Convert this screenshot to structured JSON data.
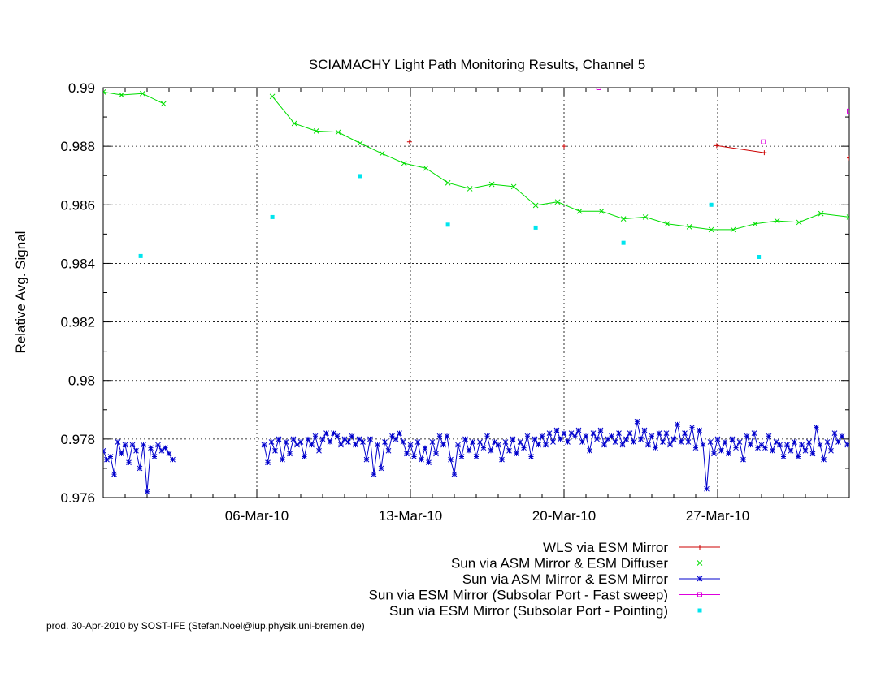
{
  "chart_data": {
    "type": "line",
    "title": "SCIAMACHY Light Path Monitoring Results, Channel 5",
    "xlabel": "",
    "ylabel": "Relative Avg. Signal",
    "x_type": "date",
    "xlim": [
      "2010-02-27",
      "2010-04-02"
    ],
    "ylim": [
      0.976,
      0.99
    ],
    "x_ticks": [
      {
        "date": "2010-03-06",
        "label": "06-Mar-10"
      },
      {
        "date": "2010-03-13",
        "label": "13-Mar-10"
      },
      {
        "date": "2010-03-20",
        "label": "20-Mar-10"
      },
      {
        "date": "2010-03-27",
        "label": "27-Mar-10"
      }
    ],
    "y_ticks": [
      0.976,
      0.978,
      0.98,
      0.982,
      0.984,
      0.986,
      0.988,
      0.99
    ],
    "y_tick_labels": [
      "0.976",
      "0.978",
      "0.98",
      "0.982",
      "0.984",
      "0.986",
      "0.988",
      "0.99"
    ],
    "grid": true,
    "legend_position": "below",
    "series": [
      {
        "name": "WLS via ESM Mirror",
        "color": "#cc0000",
        "marker": "plus",
        "line": true,
        "points": [
          [
            "2010-03-12T23:00",
            0.98815
          ],
          [
            "2010-03-20T00:00",
            0.988
          ],
          [
            "2010-03-26T23:00",
            0.98802
          ],
          [
            "2010-03-29T03:00",
            0.98778
          ],
          [
            "2010-04-02T00:00",
            0.9876
          ]
        ]
      },
      {
        "name": "Sun via ASM Mirror & ESM Diffuser",
        "color": "#00dd00",
        "marker": "cross",
        "line": true,
        "points": [
          [
            "2010-02-27T00:00",
            0.98985
          ],
          [
            "2010-02-27T20:00",
            0.98975
          ],
          [
            "2010-02-28T19:00",
            0.9898
          ],
          [
            "2010-03-01T18:00",
            0.98945
          ],
          [
            "2010-03-06T17:00",
            0.9897
          ],
          [
            "2010-03-07T17:00",
            0.98878
          ],
          [
            "2010-03-08T17:00",
            0.98852
          ],
          [
            "2010-03-09T17:00",
            0.98848
          ],
          [
            "2010-03-10T17:00",
            0.9881
          ],
          [
            "2010-03-11T17:00",
            0.98775
          ],
          [
            "2010-03-12T17:00",
            0.98742
          ],
          [
            "2010-03-13T17:00",
            0.98725
          ],
          [
            "2010-03-14T17:00",
            0.98675
          ],
          [
            "2010-03-15T17:00",
            0.98655
          ],
          [
            "2010-03-16T17:00",
            0.9867
          ],
          [
            "2010-03-17T17:00",
            0.98662
          ],
          [
            "2010-03-18T17:00",
            0.98598
          ],
          [
            "2010-03-19T17:00",
            0.9861
          ],
          [
            "2010-03-20T17:00",
            0.98578
          ],
          [
            "2010-03-21T17:00",
            0.98578
          ],
          [
            "2010-03-22T17:00",
            0.98552
          ],
          [
            "2010-03-23T17:00",
            0.98558
          ],
          [
            "2010-03-24T17:00",
            0.98535
          ],
          [
            "2010-03-25T17:00",
            0.98525
          ],
          [
            "2010-03-26T17:00",
            0.98515
          ],
          [
            "2010-03-27T17:00",
            0.98515
          ],
          [
            "2010-03-28T17:00",
            0.98535
          ],
          [
            "2010-03-29T17:00",
            0.98545
          ],
          [
            "2010-03-30T17:00",
            0.9854
          ],
          [
            "2010-03-31T17:00",
            0.9857
          ],
          [
            "2010-04-02T00:00",
            0.98558
          ]
        ]
      },
      {
        "name": "Sun via ASM Mirror & ESM Mirror",
        "color": "#0000cc",
        "marker": "star",
        "line": true,
        "points": [
          [
            "2010-02-27T00:00",
            0.9776
          ],
          [
            "2010-02-27T04:00",
            0.9773
          ],
          [
            "2010-02-27T08:00",
            0.9774
          ],
          [
            "2010-02-27T12:00",
            0.9768
          ],
          [
            "2010-02-27T16:00",
            0.9779
          ],
          [
            "2010-02-27T20:00",
            0.9775
          ],
          [
            "2010-02-28T00:00",
            0.9778
          ],
          [
            "2010-02-28T04:00",
            0.9772
          ],
          [
            "2010-02-28T08:00",
            0.9778
          ],
          [
            "2010-02-28T12:00",
            0.9776
          ],
          [
            "2010-02-28T16:00",
            0.977
          ],
          [
            "2010-02-28T20:00",
            0.9778
          ],
          [
            "2010-03-01T00:00",
            0.9762
          ],
          [
            "2010-03-01T04:00",
            0.9777
          ],
          [
            "2010-03-01T08:00",
            0.9774
          ],
          [
            "2010-03-01T12:00",
            0.9778
          ],
          [
            "2010-03-01T16:00",
            0.9776
          ],
          [
            "2010-03-01T20:00",
            0.9777
          ],
          [
            "2010-03-02T00:00",
            0.9775
          ],
          [
            "2010-03-02T04:00",
            0.9773
          ],
          [
            "2010-03-06T08:00",
            0.9778
          ],
          [
            "2010-03-06T12:00",
            0.9772
          ],
          [
            "2010-03-06T16:00",
            0.9779
          ],
          [
            "2010-03-06T20:00",
            0.9776
          ],
          [
            "2010-03-07T00:00",
            0.978
          ],
          [
            "2010-03-07T04:00",
            0.9773
          ],
          [
            "2010-03-07T08:00",
            0.9779
          ],
          [
            "2010-03-07T12:00",
            0.9775
          ],
          [
            "2010-03-07T16:00",
            0.978
          ],
          [
            "2010-03-07T20:00",
            0.9778
          ],
          [
            "2010-03-08T00:00",
            0.9779
          ],
          [
            "2010-03-08T04:00",
            0.9774
          ],
          [
            "2010-03-08T08:00",
            0.978
          ],
          [
            "2010-03-08T12:00",
            0.9778
          ],
          [
            "2010-03-08T16:00",
            0.9781
          ],
          [
            "2010-03-08T20:00",
            0.9776
          ],
          [
            "2010-03-09T00:00",
            0.978
          ],
          [
            "2010-03-09T04:00",
            0.9782
          ],
          [
            "2010-03-09T08:00",
            0.9779
          ],
          [
            "2010-03-09T12:00",
            0.9782
          ],
          [
            "2010-03-09T16:00",
            0.9781
          ],
          [
            "2010-03-09T20:00",
            0.9778
          ],
          [
            "2010-03-10T00:00",
            0.978
          ],
          [
            "2010-03-10T04:00",
            0.9779
          ],
          [
            "2010-03-10T08:00",
            0.9781
          ],
          [
            "2010-03-10T12:00",
            0.9778
          ],
          [
            "2010-03-10T16:00",
            0.978
          ],
          [
            "2010-03-10T20:00",
            0.9779
          ],
          [
            "2010-03-11T00:00",
            0.9773
          ],
          [
            "2010-03-11T04:00",
            0.978
          ],
          [
            "2010-03-11T08:00",
            0.9768
          ],
          [
            "2010-03-11T12:00",
            0.9778
          ],
          [
            "2010-03-11T16:00",
            0.977
          ],
          [
            "2010-03-11T20:00",
            0.9779
          ],
          [
            "2010-03-12T00:00",
            0.9776
          ],
          [
            "2010-03-12T04:00",
            0.9781
          ],
          [
            "2010-03-12T08:00",
            0.978
          ],
          [
            "2010-03-12T12:00",
            0.9782
          ],
          [
            "2010-03-12T16:00",
            0.9779
          ],
          [
            "2010-03-12T20:00",
            0.9775
          ],
          [
            "2010-03-13T00:00",
            0.9778
          ],
          [
            "2010-03-13T04:00",
            0.9774
          ],
          [
            "2010-03-13T08:00",
            0.9779
          ],
          [
            "2010-03-13T12:00",
            0.9773
          ],
          [
            "2010-03-13T16:00",
            0.9777
          ],
          [
            "2010-03-13T20:00",
            0.9772
          ],
          [
            "2010-03-14T00:00",
            0.9779
          ],
          [
            "2010-03-14T04:00",
            0.9775
          ],
          [
            "2010-03-14T08:00",
            0.9781
          ],
          [
            "2010-03-14T12:00",
            0.9778
          ],
          [
            "2010-03-14T16:00",
            0.9781
          ],
          [
            "2010-03-14T20:00",
            0.9773
          ],
          [
            "2010-03-15T00:00",
            0.9768
          ],
          [
            "2010-03-15T04:00",
            0.9778
          ],
          [
            "2010-03-15T08:00",
            0.9774
          ],
          [
            "2010-03-15T12:00",
            0.978
          ],
          [
            "2010-03-15T16:00",
            0.9776
          ],
          [
            "2010-03-15T20:00",
            0.9779
          ],
          [
            "2010-03-16T00:00",
            0.9774
          ],
          [
            "2010-03-16T04:00",
            0.9779
          ],
          [
            "2010-03-16T08:00",
            0.9777
          ],
          [
            "2010-03-16T12:00",
            0.9781
          ],
          [
            "2010-03-16T16:00",
            0.9776
          ],
          [
            "2010-03-16T20:00",
            0.9779
          ],
          [
            "2010-03-17T00:00",
            0.9778
          ],
          [
            "2010-03-17T04:00",
            0.9773
          ],
          [
            "2010-03-17T08:00",
            0.9779
          ],
          [
            "2010-03-17T12:00",
            0.9776
          ],
          [
            "2010-03-17T16:00",
            0.978
          ],
          [
            "2010-03-17T20:00",
            0.9775
          ],
          [
            "2010-03-18T00:00",
            0.9779
          ],
          [
            "2010-03-18T04:00",
            0.9777
          ],
          [
            "2010-03-18T08:00",
            0.9781
          ],
          [
            "2010-03-18T12:00",
            0.9774
          ],
          [
            "2010-03-18T16:00",
            0.978
          ],
          [
            "2010-03-18T20:00",
            0.9778
          ],
          [
            "2010-03-19T00:00",
            0.9781
          ],
          [
            "2010-03-19T04:00",
            0.9778
          ],
          [
            "2010-03-19T08:00",
            0.9782
          ],
          [
            "2010-03-19T12:00",
            0.9779
          ],
          [
            "2010-03-19T16:00",
            0.9783
          ],
          [
            "2010-03-19T20:00",
            0.978
          ],
          [
            "2010-03-20T00:00",
            0.9782
          ],
          [
            "2010-03-20T04:00",
            0.9779
          ],
          [
            "2010-03-20T08:00",
            0.9782
          ],
          [
            "2010-03-20T12:00",
            0.9781
          ],
          [
            "2010-03-20T16:00",
            0.9783
          ],
          [
            "2010-03-20T20:00",
            0.9779
          ],
          [
            "2010-03-21T00:00",
            0.9781
          ],
          [
            "2010-03-21T04:00",
            0.9776
          ],
          [
            "2010-03-21T08:00",
            0.9782
          ],
          [
            "2010-03-21T12:00",
            0.978
          ],
          [
            "2010-03-21T16:00",
            0.9783
          ],
          [
            "2010-03-21T20:00",
            0.9778
          ],
          [
            "2010-03-22T00:00",
            0.978
          ],
          [
            "2010-03-22T04:00",
            0.9781
          ],
          [
            "2010-03-22T08:00",
            0.9779
          ],
          [
            "2010-03-22T12:00",
            0.9782
          ],
          [
            "2010-03-22T16:00",
            0.9778
          ],
          [
            "2010-03-22T20:00",
            0.978
          ],
          [
            "2010-03-23T00:00",
            0.9782
          ],
          [
            "2010-03-23T04:00",
            0.9779
          ],
          [
            "2010-03-23T08:00",
            0.9786
          ],
          [
            "2010-03-23T12:00",
            0.978
          ],
          [
            "2010-03-23T16:00",
            0.9783
          ],
          [
            "2010-03-23T20:00",
            0.9778
          ],
          [
            "2010-03-24T00:00",
            0.9781
          ],
          [
            "2010-03-24T04:00",
            0.9777
          ],
          [
            "2010-03-24T08:00",
            0.9782
          ],
          [
            "2010-03-24T12:00",
            0.9779
          ],
          [
            "2010-03-24T16:00",
            0.9782
          ],
          [
            "2010-03-24T20:00",
            0.9778
          ],
          [
            "2010-03-25T00:00",
            0.978
          ],
          [
            "2010-03-25T04:00",
            0.9785
          ],
          [
            "2010-03-25T08:00",
            0.9779
          ],
          [
            "2010-03-25T12:00",
            0.9782
          ],
          [
            "2010-03-25T16:00",
            0.9779
          ],
          [
            "2010-03-25T20:00",
            0.9784
          ],
          [
            "2010-03-26T00:00",
            0.9777
          ],
          [
            "2010-03-26T04:00",
            0.9783
          ],
          [
            "2010-03-26T08:00",
            0.9778
          ],
          [
            "2010-03-26T12:00",
            0.9763
          ],
          [
            "2010-03-26T16:00",
            0.9779
          ],
          [
            "2010-03-26T20:00",
            0.9775
          ],
          [
            "2010-03-27T00:00",
            0.978
          ],
          [
            "2010-03-27T04:00",
            0.9776
          ],
          [
            "2010-03-27T08:00",
            0.9779
          ],
          [
            "2010-03-27T12:00",
            0.9775
          ],
          [
            "2010-03-27T16:00",
            0.978
          ],
          [
            "2010-03-27T20:00",
            0.9777
          ],
          [
            "2010-03-28T00:00",
            0.9779
          ],
          [
            "2010-03-28T04:00",
            0.9773
          ],
          [
            "2010-03-28T08:00",
            0.9781
          ],
          [
            "2010-03-28T12:00",
            0.9778
          ],
          [
            "2010-03-28T16:00",
            0.9782
          ],
          [
            "2010-03-28T20:00",
            0.9777
          ],
          [
            "2010-03-29T00:00",
            0.9778
          ],
          [
            "2010-03-29T04:00",
            0.9777
          ],
          [
            "2010-03-29T08:00",
            0.9781
          ],
          [
            "2010-03-29T12:00",
            0.9776
          ],
          [
            "2010-03-29T16:00",
            0.9779
          ],
          [
            "2010-03-29T20:00",
            0.9778
          ],
          [
            "2010-03-30T00:00",
            0.9774
          ],
          [
            "2010-03-30T04:00",
            0.9778
          ],
          [
            "2010-03-30T08:00",
            0.9776
          ],
          [
            "2010-03-30T12:00",
            0.9779
          ],
          [
            "2010-03-30T16:00",
            0.9774
          ],
          [
            "2010-03-30T20:00",
            0.9778
          ],
          [
            "2010-03-31T00:00",
            0.9776
          ],
          [
            "2010-03-31T04:00",
            0.9779
          ],
          [
            "2010-03-31T08:00",
            0.9775
          ],
          [
            "2010-03-31T12:00",
            0.9784
          ],
          [
            "2010-03-31T16:00",
            0.9778
          ],
          [
            "2010-03-31T20:00",
            0.9773
          ],
          [
            "2010-04-01T00:00",
            0.9779
          ],
          [
            "2010-04-01T04:00",
            0.9776
          ],
          [
            "2010-04-01T08:00",
            0.9782
          ],
          [
            "2010-04-01T12:00",
            0.9779
          ],
          [
            "2010-04-01T16:00",
            0.9781
          ],
          [
            "2010-04-01T22:00",
            0.9778
          ]
        ]
      },
      {
        "name": "Sun via ESM Mirror (Subsolar Port - Fast sweep)",
        "color": "#dd00dd",
        "marker": "box",
        "line": true,
        "points": [
          [
            "2010-03-21T14:00",
            0.99
          ],
          [
            "2010-03-29T02:00",
            0.98815
          ],
          [
            "2010-04-02T00:00",
            0.9892
          ]
        ]
      },
      {
        "name": "Sun via ESM Mirror (Subsolar Port - Pointing)",
        "color": "#00e5ee",
        "marker": "square",
        "line": false,
        "points": [
          [
            "2010-02-28T17:00",
            0.98425
          ],
          [
            "2010-03-06T17:00",
            0.98558
          ],
          [
            "2010-03-10T17:00",
            0.98698
          ],
          [
            "2010-03-14T17:00",
            0.98532
          ],
          [
            "2010-03-18T17:00",
            0.98522
          ],
          [
            "2010-03-22T17:00",
            0.9847
          ],
          [
            "2010-03-26T17:00",
            0.986
          ],
          [
            "2010-03-28T21:00",
            0.98422
          ]
        ]
      }
    ]
  },
  "footer": "prod. 30-Apr-2010 by SOST-IFE (Stefan.Noel@iup.physik.uni-bremen.de)"
}
